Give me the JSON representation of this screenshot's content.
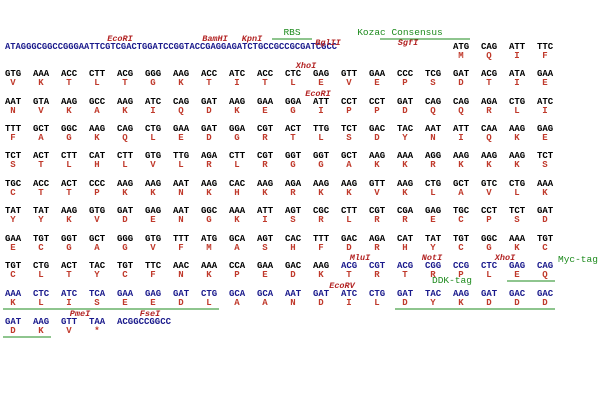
{
  "lines": [
    {
      "prefix": "ATAGGGCGGCCGGGAATTCGTCGACTGGATCCGGTACCGAGGAGATCTGCCGCCGCGATCGCC",
      "codons": [
        "ATG",
        "CAG",
        "ATT",
        "TTC"
      ],
      "aa": [
        "M",
        "Q",
        "I",
        "F"
      ],
      "sites": [
        "EcoRI",
        "BamHI",
        "KpnI",
        "BglII",
        "SgfI"
      ],
      "features": [
        "RBS",
        "Kozac Consensus"
      ]
    },
    {
      "codons": [
        "GTG",
        "AAA",
        "ACC",
        "CTT",
        "ACG",
        "GGG",
        "AAG",
        "ACC",
        "ATC",
        "ACC",
        "CTC",
        "GAG",
        "GTT",
        "GAA",
        "CCC",
        "TCG",
        "GAT",
        "ACG",
        "ATA",
        "GAA"
      ],
      "aa": [
        "V",
        "K",
        "T",
        "L",
        "T",
        "G",
        "K",
        "T",
        "I",
        "T",
        "L",
        "E",
        "V",
        "E",
        "P",
        "S",
        "D",
        "T",
        "I",
        "E"
      ],
      "sites": [
        "XhoI"
      ]
    },
    {
      "codons": [
        "AAT",
        "GTA",
        "AAG",
        "GCC",
        "AAG",
        "ATC",
        "CAG",
        "GAT",
        "AAG",
        "GAA",
        "GGA",
        "ATT",
        "CCT",
        "CCT",
        "GAT",
        "CAG",
        "CAG",
        "AGA",
        "CTG",
        "ATC"
      ],
      "aa": [
        "N",
        "V",
        "K",
        "A",
        "K",
        "I",
        "Q",
        "D",
        "K",
        "E",
        "G",
        "I",
        "P",
        "P",
        "D",
        "Q",
        "Q",
        "R",
        "L",
        "I"
      ],
      "sites": [
        "EcoRI"
      ]
    },
    {
      "codons": [
        "TTT",
        "GCT",
        "GGC",
        "AAG",
        "CAG",
        "CTG",
        "GAA",
        "GAT",
        "GGA",
        "CGT",
        "ACT",
        "TTG",
        "TCT",
        "GAC",
        "TAC",
        "AAT",
        "ATT",
        "CAA",
        "AAG",
        "GAG"
      ],
      "aa": [
        "F",
        "A",
        "G",
        "K",
        "Q",
        "L",
        "E",
        "D",
        "G",
        "R",
        "T",
        "L",
        "S",
        "D",
        "Y",
        "N",
        "I",
        "Q",
        "K",
        "E"
      ]
    },
    {
      "codons": [
        "TCT",
        "ACT",
        "CTT",
        "CAT",
        "CTT",
        "GTG",
        "TTG",
        "AGA",
        "CTT",
        "CGT",
        "GGT",
        "GGT",
        "GCT",
        "AAG",
        "AAA",
        "AGG",
        "AAG",
        "AAG",
        "AAG",
        "TCT"
      ],
      "aa": [
        "S",
        "T",
        "L",
        "H",
        "L",
        "V",
        "L",
        "R",
        "L",
        "R",
        "G",
        "G",
        "A",
        "K",
        "K",
        "R",
        "K",
        "K",
        "K",
        "S"
      ]
    },
    {
      "codons": [
        "TGC",
        "ACC",
        "ACT",
        "CCC",
        "AAG",
        "AAG",
        "AAT",
        "AAG",
        "CAC",
        "AAG",
        "AGA",
        "AAG",
        "AAG",
        "GTT",
        "AAG",
        "CTG",
        "GCT",
        "GTC",
        "CTG",
        "AAA"
      ],
      "aa": [
        "C",
        "T",
        "T",
        "P",
        "K",
        "K",
        "N",
        "K",
        "H",
        "K",
        "R",
        "K",
        "K",
        "V",
        "K",
        "L",
        "A",
        "V",
        "L",
        "K"
      ]
    },
    {
      "codons": [
        "TAT",
        "TAT",
        "AAG",
        "GTG",
        "GAT",
        "GAG",
        "AAT",
        "GGC",
        "AAA",
        "ATT",
        "AGT",
        "CGC",
        "CTT",
        "CGT",
        "CGA",
        "GAG",
        "TGC",
        "CCT",
        "TCT",
        "GAT"
      ],
      "aa": [
        "Y",
        "Y",
        "K",
        "V",
        "D",
        "E",
        "N",
        "G",
        "K",
        "I",
        "S",
        "R",
        "L",
        "R",
        "R",
        "E",
        "C",
        "P",
        "S",
        "D"
      ]
    },
    {
      "codons": [
        "GAA",
        "TGT",
        "GGT",
        "GCT",
        "GGG",
        "GTG",
        "TTT",
        "ATG",
        "GCA",
        "AGT",
        "CAC",
        "TTT",
        "GAC",
        "AGA",
        "CAT",
        "TAT",
        "TGT",
        "GGC",
        "AAA",
        "TGT"
      ],
      "aa": [
        "E",
        "C",
        "G",
        "A",
        "G",
        "V",
        "F",
        "M",
        "A",
        "S",
        "H",
        "F",
        "D",
        "R",
        "H",
        "Y",
        "C",
        "G",
        "K",
        "C"
      ]
    },
    {
      "codons": [
        "TGT",
        "CTG",
        "ACT",
        "TAC",
        "TGT",
        "TTC",
        "AAC",
        "AAA",
        "CCA",
        "GAA",
        "GAC",
        "AAG",
        "ACG",
        "CGT",
        "ACG",
        "CGG",
        "CCG",
        "CTC",
        "GAG",
        "CAG"
      ],
      "aa": [
        "C",
        "L",
        "T",
        "Y",
        "C",
        "F",
        "N",
        "K",
        "P",
        "E",
        "D",
        "K",
        "T",
        "R",
        "T",
        "R",
        "P",
        "L",
        "E",
        "Q"
      ],
      "sites": [
        "MluI",
        "NotI",
        "XhoI"
      ],
      "features": [
        "Myc-tag"
      ]
    },
    {
      "codons": [
        "AAA",
        "CTC",
        "ATC",
        "TCA",
        "GAA",
        "GAG",
        "GAT",
        "CTG",
        "GCA",
        "GCA",
        "AAT",
        "GAT",
        "ATC",
        "CTG",
        "GAT",
        "TAC",
        "AAG",
        "GAT",
        "GAC",
        "GAC"
      ],
      "aa": [
        "K",
        "L",
        "I",
        "S",
        "E",
        "E",
        "D",
        "L",
        "A",
        "A",
        "N",
        "D",
        "I",
        "L",
        "D",
        "Y",
        "K",
        "D",
        "D",
        "D"
      ],
      "sites": [
        "EcoRV"
      ],
      "features": [
        "DDK-tag"
      ]
    },
    {
      "codons": [
        "GAT",
        "AAG",
        "GTT",
        "TAA"
      ],
      "aa": [
        "D",
        "K",
        "V",
        "*"
      ],
      "tail": "ACGGCCGGCC",
      "sites": [
        "PmeI",
        "FseI"
      ]
    }
  ]
}
